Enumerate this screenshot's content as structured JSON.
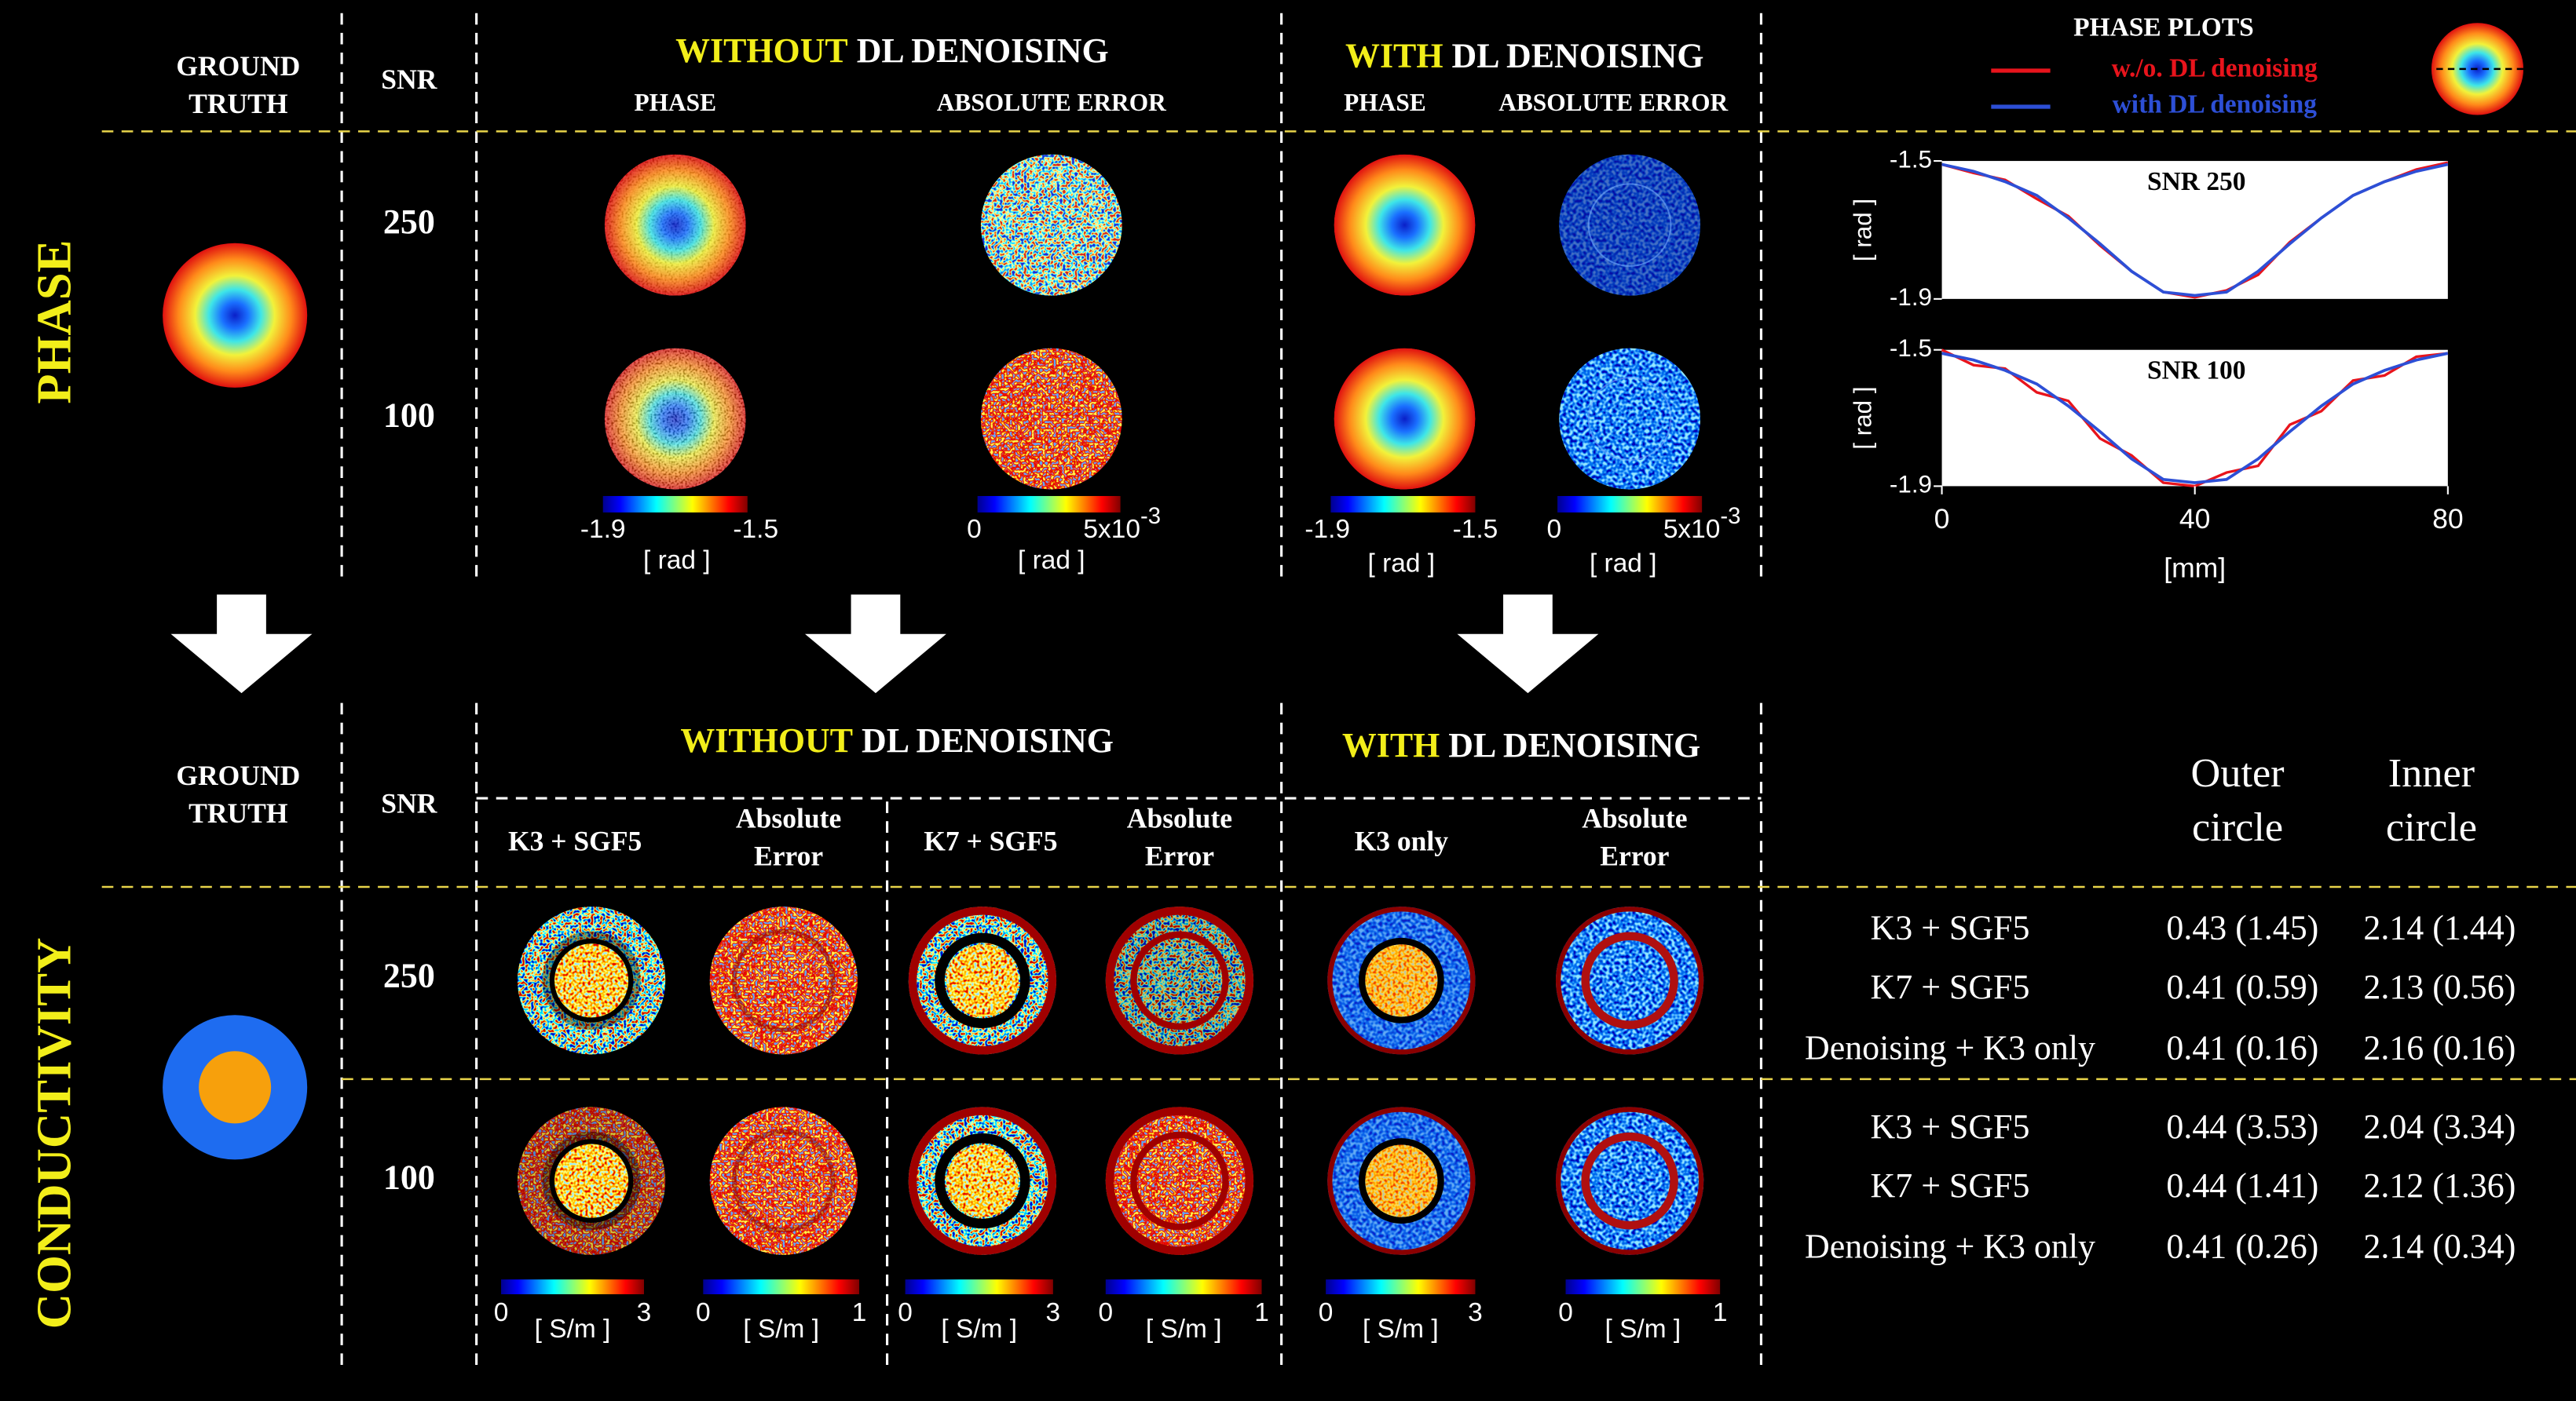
{
  "top": {
    "section_label": "PHASE",
    "ground_truth": [
      "GROUND",
      "TRUTH"
    ],
    "snr_header": "SNR",
    "snr": [
      "250",
      "100"
    ],
    "without": {
      "prefix": "WITHOUT",
      "suffix": "DL DENOISING",
      "columns": [
        "PHASE",
        "ABSOLUTE ERROR"
      ]
    },
    "with": {
      "prefix": "WITH",
      "suffix": "DL DENOISING",
      "columns": [
        "PHASE",
        "ABSOLUTE ERROR"
      ]
    },
    "phase_colorbar": {
      "ticks": [
        "-1.9",
        "-1.5"
      ],
      "unit": "[ rad ]"
    },
    "error_colorbar": {
      "ticks": [
        "0",
        "5x10"
      ],
      "exponent": "-3",
      "unit": "[ rad ]"
    }
  },
  "phase_plots": {
    "title": "PHASE PLOTS",
    "xlabel": "[mm]",
    "ylabel": "[ rad ]",
    "xlim": [
      0,
      80
    ],
    "xticks": [
      0,
      40,
      80
    ],
    "ylim": [
      -1.9,
      -1.5
    ],
    "yticks": [
      -1.5,
      -1.9
    ],
    "x": [
      0,
      5,
      10,
      15,
      20,
      25,
      30,
      35,
      40,
      45,
      50,
      55,
      60,
      65,
      70,
      75,
      80
    ],
    "legend": [
      {
        "name": "w./o. DL denoising",
        "color": "#e8141c"
      },
      {
        "name": "with DL denoising",
        "color": "#2d4fd6"
      }
    ],
    "panels": [
      {
        "label": "SNR 250",
        "series": [
          {
            "values": [
              -1.51,
              -1.535,
              -1.555,
              -1.61,
              -1.66,
              -1.745,
              -1.82,
              -1.88,
              -1.895,
              -1.875,
              -1.83,
              -1.735,
              -1.665,
              -1.6,
              -1.56,
              -1.525,
              -1.505
            ]
          },
          {
            "values": [
              -1.51,
              -1.53,
              -1.56,
              -1.6,
              -1.665,
              -1.74,
              -1.82,
              -1.88,
              -1.89,
              -1.88,
              -1.82,
              -1.74,
              -1.665,
              -1.6,
              -1.56,
              -1.53,
              -1.51
            ]
          }
        ]
      },
      {
        "label": "SNR 100",
        "series": [
          {
            "values": [
              -1.5,
              -1.545,
              -1.555,
              -1.625,
              -1.65,
              -1.76,
              -1.81,
              -1.89,
              -1.9,
              -1.86,
              -1.84,
              -1.72,
              -1.68,
              -1.59,
              -1.575,
              -1.52,
              -1.51
            ]
          },
          {
            "values": [
              -1.51,
              -1.53,
              -1.56,
              -1.6,
              -1.665,
              -1.74,
              -1.82,
              -1.88,
              -1.89,
              -1.88,
              -1.82,
              -1.74,
              -1.665,
              -1.6,
              -1.56,
              -1.53,
              -1.51
            ]
          }
        ]
      }
    ]
  },
  "bottom": {
    "section_label": "CONDUCTIVITY",
    "ground_truth": [
      "GROUND",
      "TRUTH"
    ],
    "snr_header": "SNR",
    "snr": [
      "250",
      "100"
    ],
    "without": {
      "prefix": "WITHOUT",
      "suffix": "DL DENOISING"
    },
    "with": {
      "prefix": "WITH",
      "suffix": "DL DENOISING"
    },
    "columns": [
      {
        "label": [
          "K3 + SGF5"
        ]
      },
      {
        "label": [
          "Absolute",
          "Error"
        ]
      },
      {
        "label": [
          "K7 + SGF5"
        ]
      },
      {
        "label": [
          "Absolute",
          "Error"
        ]
      },
      {
        "label": [
          "K3 only"
        ]
      },
      {
        "label": [
          "Absolute",
          "Error"
        ]
      }
    ],
    "colorbars": [
      {
        "ticks": [
          "0",
          "3"
        ],
        "unit": "[ S/m ]"
      },
      {
        "ticks": [
          "0",
          "1"
        ],
        "unit": "[ S/m ]"
      },
      {
        "ticks": [
          "0",
          "3"
        ],
        "unit": "[ S/m ]"
      },
      {
        "ticks": [
          "0",
          "1"
        ],
        "unit": "[ S/m ]"
      },
      {
        "ticks": [
          "0",
          "3"
        ],
        "unit": "[ S/m ]"
      },
      {
        "ticks": [
          "0",
          "1"
        ],
        "unit": "[ S/m ]"
      }
    ],
    "table": {
      "columns": [
        [
          "Outer",
          "circle"
        ],
        [
          "Inner",
          "circle"
        ]
      ],
      "groups": [
        [
          {
            "method": "K3 + SGF5",
            "outer": "0.43 (1.45)",
            "inner": "2.14 (1.44)"
          },
          {
            "method": "K7 + SGF5",
            "outer": "0.41 (0.59)",
            "inner": "2.13 (0.56)"
          },
          {
            "method": "Denoising + K3 only",
            "outer": "0.41 (0.16)",
            "inner": "2.16 (0.16)"
          }
        ],
        [
          {
            "method": "K3 + SGF5",
            "outer": "0.44 (3.53)",
            "inner": "2.04 (3.34)"
          },
          {
            "method": "K7 + SGF5",
            "outer": "0.44 (1.41)",
            "inner": "2.12 (1.36)"
          },
          {
            "method": "Denoising + K3 only",
            "outer": "0.41 (0.26)",
            "inner": "2.14 (0.34)"
          }
        ]
      ]
    }
  }
}
